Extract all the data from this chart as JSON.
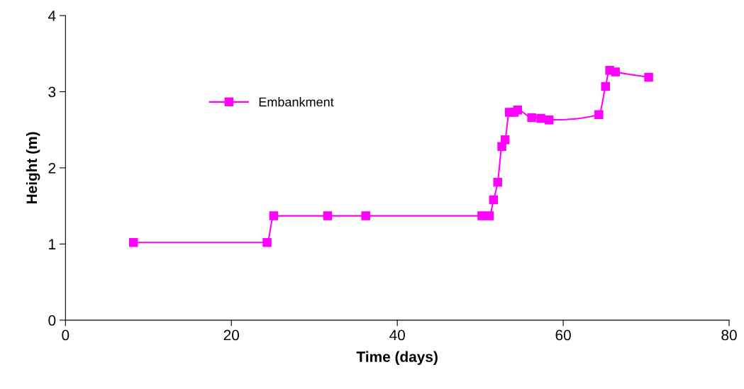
{
  "chart_data": {
    "type": "line",
    "xlabel": "Time (days)",
    "ylabel": "Height (m)",
    "xlim": [
      0,
      80
    ],
    "xticks": [
      0,
      20,
      40,
      60,
      80
    ],
    "ylim": [
      0,
      4
    ],
    "yticks": [
      0,
      1,
      2,
      3,
      4
    ],
    "grid": false,
    "legend": "top left",
    "marker": "square",
    "line_style": "solid",
    "series": [
      {
        "name": "Embankment",
        "color": "#ff00ff",
        "x": [
          8.2,
          24.3,
          25.1,
          31.6,
          36.2,
          50.2,
          51.1,
          51.6,
          52.1,
          52.6,
          53.0,
          53.5,
          54.1,
          54.5,
          56.2,
          57.3,
          58.3,
          64.3,
          65.1,
          65.6,
          66.3,
          70.3
        ],
        "values": [
          1.02,
          1.02,
          1.37,
          1.37,
          1.37,
          1.37,
          1.37,
          1.58,
          1.81,
          2.28,
          2.37,
          2.73,
          2.73,
          2.76,
          2.66,
          2.65,
          2.63,
          2.7,
          3.07,
          3.28,
          3.26,
          3.19
        ]
      }
    ]
  }
}
